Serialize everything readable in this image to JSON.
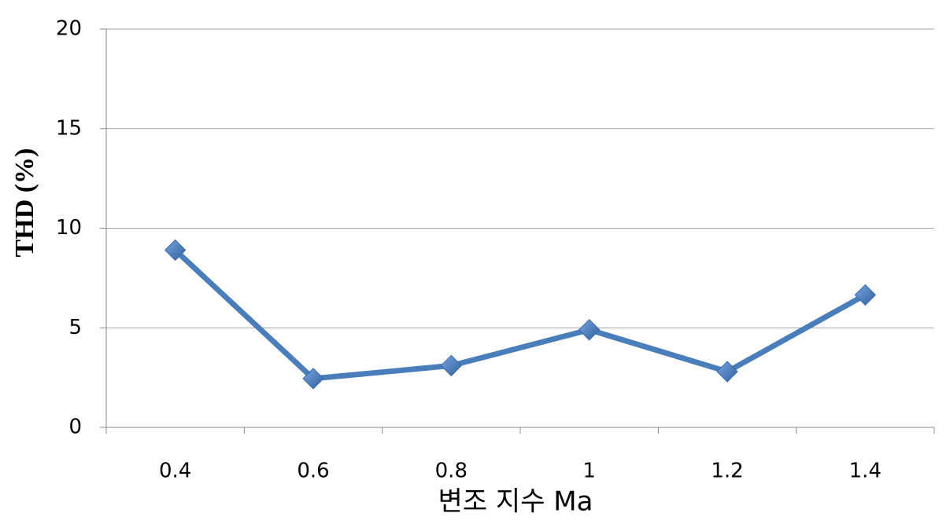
{
  "chart_data": {
    "type": "line",
    "categories": [
      "0.4",
      "0.6",
      "0.8",
      "1",
      "1.2",
      "1.4"
    ],
    "series": [
      {
        "name": "THD",
        "color": "#4a7ebb",
        "values": [
          8.9,
          2.45,
          3.1,
          4.9,
          2.8,
          6.65
        ]
      }
    ],
    "ylim": [
      0,
      20
    ],
    "yticks": [
      0,
      5,
      10,
      15,
      20
    ],
    "grid": true,
    "y_label": "THD (%)",
    "x_label": "변조 지수 Ma"
  }
}
